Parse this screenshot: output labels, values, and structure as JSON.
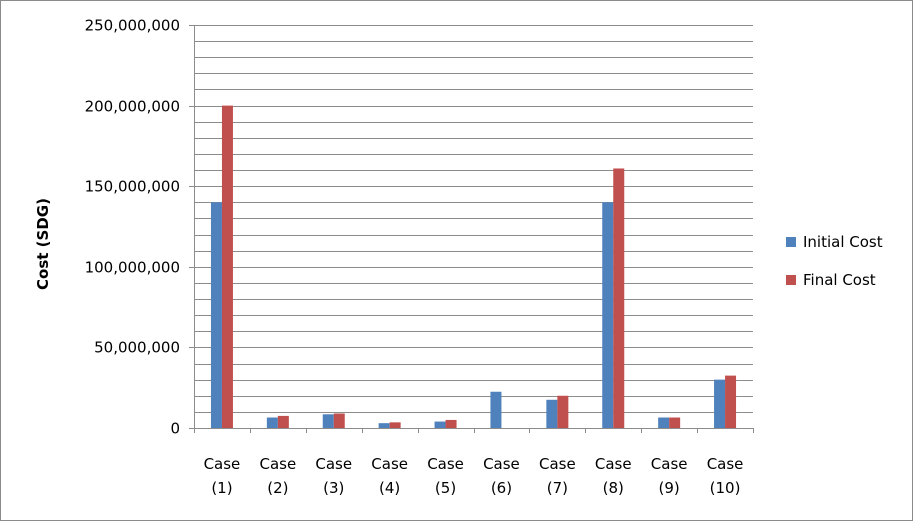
{
  "chart_data": {
    "type": "bar",
    "title": "",
    "xlabel": "",
    "ylabel": "Cost (SDG)",
    "ylim": [
      0,
      250000000
    ],
    "y_major_step": 50000000,
    "y_minor_step": 10000000,
    "y_ticks": [
      "0",
      "50,000,000",
      "100,000,000",
      "150,000,000",
      "200,000,000",
      "250,000,000"
    ],
    "grid": true,
    "legend_position": "right",
    "categories": [
      [
        "Case",
        "(1)"
      ],
      [
        "Case",
        "(2)"
      ],
      [
        "Case",
        "(3)"
      ],
      [
        "Case",
        "(4)"
      ],
      [
        "Case",
        "(5)"
      ],
      [
        "Case",
        "(6)"
      ],
      [
        "Case",
        "(7)"
      ],
      [
        "Case",
        "(8)"
      ],
      [
        "Case",
        "(9)"
      ],
      [
        "Case",
        "(10)"
      ]
    ],
    "series": [
      {
        "name": "Initial Cost",
        "color": "#4f81bd",
        "values": [
          140000000,
          6500000,
          8500000,
          3000000,
          4000000,
          22500000,
          17500000,
          140000000,
          6500000,
          30000000
        ]
      },
      {
        "name": "Final Cost",
        "color": "#c0504d",
        "values": [
          200000000,
          7500000,
          9000000,
          3500000,
          5000000,
          0,
          20000000,
          161000000,
          6500000,
          32500000
        ]
      }
    ]
  }
}
